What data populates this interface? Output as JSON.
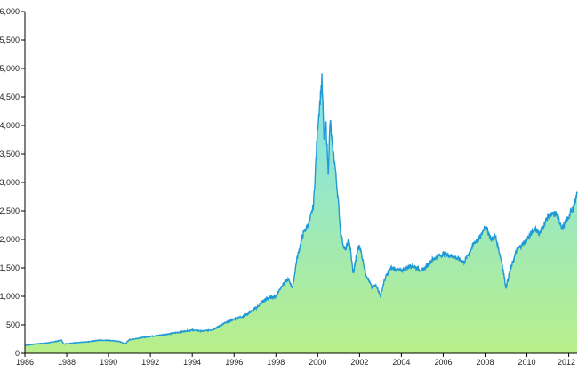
{
  "colors": {
    "line": "#1f9ad6",
    "gradient_top": "#7fe2f2",
    "gradient_bottom": "#b8ef8a",
    "axis": "#000000"
  },
  "chart_data": {
    "type": "area",
    "title": "",
    "xlabel": "",
    "ylabel": "",
    "grid": false,
    "legend": "none",
    "xlim": [
      1986.0,
      2012.4
    ],
    "ylim": [
      0,
      6000
    ],
    "x_ticks": [
      "1986",
      "1988",
      "1990",
      "1992",
      "1994",
      "1996",
      "1998",
      "2000",
      "2002",
      "2004",
      "2006",
      "2008",
      "2010",
      "2012"
    ],
    "y_ticks": [
      "0",
      "500",
      "1,000",
      "1,500",
      "2,000",
      "2,500",
      "3,000",
      "3,500",
      "4,000",
      "4,500",
      "5,000",
      "5,500",
      "6,000"
    ],
    "series": [
      {
        "x": [
          1986.0,
          1986.5,
          1987.0,
          1987.5,
          1987.75,
          1987.85,
          1988.0,
          1988.5,
          1989.0,
          1989.5,
          1990.0,
          1990.5,
          1990.8,
          1991.0,
          1991.5,
          1992.0,
          1992.5,
          1993.0,
          1993.5,
          1994.0,
          1994.5,
          1995.0,
          1995.5,
          1996.0,
          1996.5,
          1997.0,
          1997.5,
          1998.0,
          1998.3,
          1998.6,
          1998.8,
          1999.0,
          1999.3,
          1999.6,
          1999.8,
          2000.0,
          2000.1,
          2000.2,
          2000.3,
          2000.4,
          2000.5,
          2000.6,
          2000.7,
          2000.8,
          2001.0,
          2001.1,
          2001.3,
          2001.5,
          2001.7,
          2001.9,
          2002.0,
          2002.3,
          2002.6,
          2002.8,
          2003.0,
          2003.2,
          2003.5,
          2004.0,
          2004.5,
          2005.0,
          2005.5,
          2006.0,
          2006.5,
          2007.0,
          2007.5,
          2007.8,
          2008.0,
          2008.3,
          2008.5,
          2008.8,
          2009.0,
          2009.2,
          2009.5,
          2010.0,
          2010.4,
          2010.6,
          2011.0,
          2011.4,
          2011.7,
          2012.0,
          2012.2,
          2012.4
        ],
        "values": [
          140,
          165,
          180,
          210,
          235,
          165,
          170,
          190,
          200,
          230,
          230,
          210,
          170,
          240,
          270,
          300,
          320,
          350,
          380,
          410,
          390,
          420,
          520,
          600,
          660,
          780,
          950,
          1000,
          1200,
          1300,
          1150,
          1650,
          2100,
          2300,
          2600,
          4000,
          4400,
          4800,
          3800,
          4000,
          3200,
          4100,
          3600,
          3400,
          2600,
          2100,
          1800,
          2000,
          1400,
          1800,
          1900,
          1400,
          1150,
          1200,
          1000,
          1300,
          1500,
          1450,
          1550,
          1450,
          1650,
          1750,
          1700,
          1600,
          1950,
          2050,
          2250,
          2000,
          2050,
          1600,
          1150,
          1450,
          1800,
          2000,
          2200,
          2100,
          2400,
          2450,
          2200,
          2400,
          2550,
          2800
        ]
      }
    ]
  }
}
